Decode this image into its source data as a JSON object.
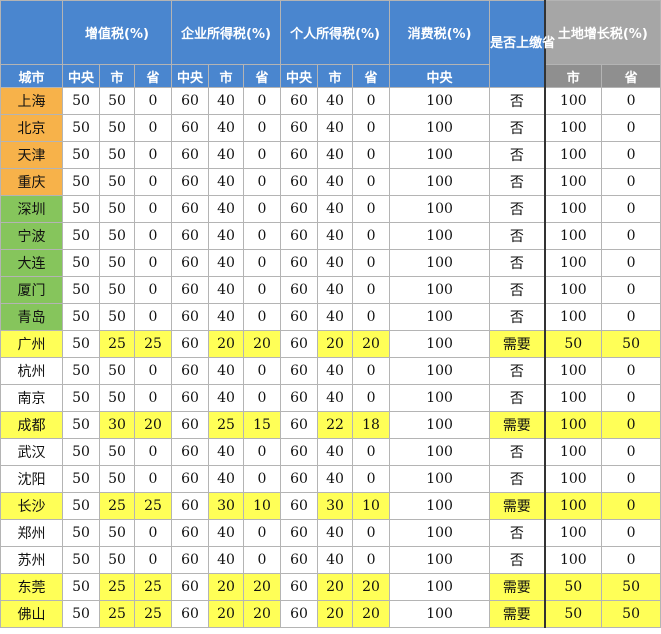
{
  "colors": {
    "header_blue": "#4a86cf",
    "header_gray": "#a6a6a6",
    "city_orange": "#f7b24a",
    "city_green": "#86c55c",
    "highlight_yellow": "#ffff57",
    "white": "#ffffff"
  },
  "header": {
    "groups": [
      "增值税(%)",
      "企业所得税(%)",
      "个人所得税(%)",
      "消费税(%)",
      "是否上缴省",
      "土地增长税(%)"
    ],
    "city_label": "城市",
    "sub": [
      "中央",
      "市",
      "省",
      "中央",
      "市",
      "省",
      "中央",
      "市",
      "省",
      "中央",
      "市",
      "省"
    ]
  },
  "rows": [
    {
      "city": "上海",
      "cityType": "orange",
      "hl": false,
      "values": [
        "50",
        "50",
        "0",
        "60",
        "40",
        "0",
        "60",
        "40",
        "0",
        "100",
        "否",
        "100",
        "0"
      ]
    },
    {
      "city": "北京",
      "cityType": "orange",
      "hl": false,
      "values": [
        "50",
        "50",
        "0",
        "60",
        "40",
        "0",
        "60",
        "40",
        "0",
        "100",
        "否",
        "100",
        "0"
      ]
    },
    {
      "city": "天津",
      "cityType": "orange",
      "hl": false,
      "values": [
        "50",
        "50",
        "0",
        "60",
        "40",
        "0",
        "60",
        "40",
        "0",
        "100",
        "否",
        "100",
        "0"
      ]
    },
    {
      "city": "重庆",
      "cityType": "orange",
      "hl": false,
      "values": [
        "50",
        "50",
        "0",
        "60",
        "40",
        "0",
        "60",
        "40",
        "0",
        "100",
        "否",
        "100",
        "0"
      ]
    },
    {
      "city": "深圳",
      "cityType": "green",
      "hl": false,
      "values": [
        "50",
        "50",
        "0",
        "60",
        "40",
        "0",
        "60",
        "40",
        "0",
        "100",
        "否",
        "100",
        "0"
      ]
    },
    {
      "city": "宁波",
      "cityType": "green",
      "hl": false,
      "values": [
        "50",
        "50",
        "0",
        "60",
        "40",
        "0",
        "60",
        "40",
        "0",
        "100",
        "否",
        "100",
        "0"
      ]
    },
    {
      "city": "大连",
      "cityType": "green",
      "hl": false,
      "values": [
        "50",
        "50",
        "0",
        "60",
        "40",
        "0",
        "60",
        "40",
        "0",
        "100",
        "否",
        "100",
        "0"
      ]
    },
    {
      "city": "厦门",
      "cityType": "green",
      "hl": false,
      "values": [
        "50",
        "50",
        "0",
        "60",
        "40",
        "0",
        "60",
        "40",
        "0",
        "100",
        "否",
        "100",
        "0"
      ]
    },
    {
      "city": "青岛",
      "cityType": "green",
      "hl": false,
      "values": [
        "50",
        "50",
        "0",
        "60",
        "40",
        "0",
        "60",
        "40",
        "0",
        "100",
        "否",
        "100",
        "0"
      ]
    },
    {
      "city": "广州",
      "cityType": "yellow",
      "hl": true,
      "values": [
        "50",
        "25",
        "25",
        "60",
        "20",
        "20",
        "60",
        "20",
        "20",
        "100",
        "需要",
        "50",
        "50"
      ]
    },
    {
      "city": "杭州",
      "cityType": "plain",
      "hl": false,
      "values": [
        "50",
        "50",
        "0",
        "60",
        "40",
        "0",
        "60",
        "40",
        "0",
        "100",
        "否",
        "100",
        "0"
      ]
    },
    {
      "city": "南京",
      "cityType": "plain",
      "hl": false,
      "values": [
        "50",
        "50",
        "0",
        "60",
        "40",
        "0",
        "60",
        "40",
        "0",
        "100",
        "否",
        "100",
        "0"
      ]
    },
    {
      "city": "成都",
      "cityType": "yellow",
      "hl": true,
      "values": [
        "50",
        "30",
        "20",
        "60",
        "25",
        "15",
        "60",
        "22",
        "18",
        "100",
        "需要",
        "100",
        "0"
      ]
    },
    {
      "city": "武汉",
      "cityType": "plain",
      "hl": false,
      "values": [
        "50",
        "50",
        "0",
        "60",
        "40",
        "0",
        "60",
        "40",
        "0",
        "100",
        "否",
        "100",
        "0"
      ]
    },
    {
      "city": "沈阳",
      "cityType": "plain",
      "hl": false,
      "values": [
        "50",
        "50",
        "0",
        "60",
        "40",
        "0",
        "60",
        "40",
        "0",
        "100",
        "否",
        "100",
        "0"
      ]
    },
    {
      "city": "长沙",
      "cityType": "yellow",
      "hl": true,
      "values": [
        "50",
        "25",
        "25",
        "60",
        "30",
        "10",
        "60",
        "30",
        "10",
        "100",
        "需要",
        "100",
        "0"
      ]
    },
    {
      "city": "郑州",
      "cityType": "plain",
      "hl": false,
      "values": [
        "50",
        "50",
        "0",
        "60",
        "40",
        "0",
        "60",
        "40",
        "0",
        "100",
        "否",
        "100",
        "0"
      ]
    },
    {
      "city": "苏州",
      "cityType": "plain",
      "hl": false,
      "values": [
        "50",
        "50",
        "0",
        "60",
        "40",
        "0",
        "60",
        "40",
        "0",
        "100",
        "否",
        "100",
        "0"
      ]
    },
    {
      "city": "东莞",
      "cityType": "yellow",
      "hl": true,
      "values": [
        "50",
        "25",
        "25",
        "60",
        "20",
        "20",
        "60",
        "20",
        "20",
        "100",
        "需要",
        "50",
        "50"
      ]
    },
    {
      "city": "佛山",
      "cityType": "yellow",
      "hl": true,
      "values": [
        "50",
        "25",
        "25",
        "60",
        "20",
        "20",
        "60",
        "20",
        "20",
        "100",
        "需要",
        "50",
        "50"
      ]
    }
  ]
}
